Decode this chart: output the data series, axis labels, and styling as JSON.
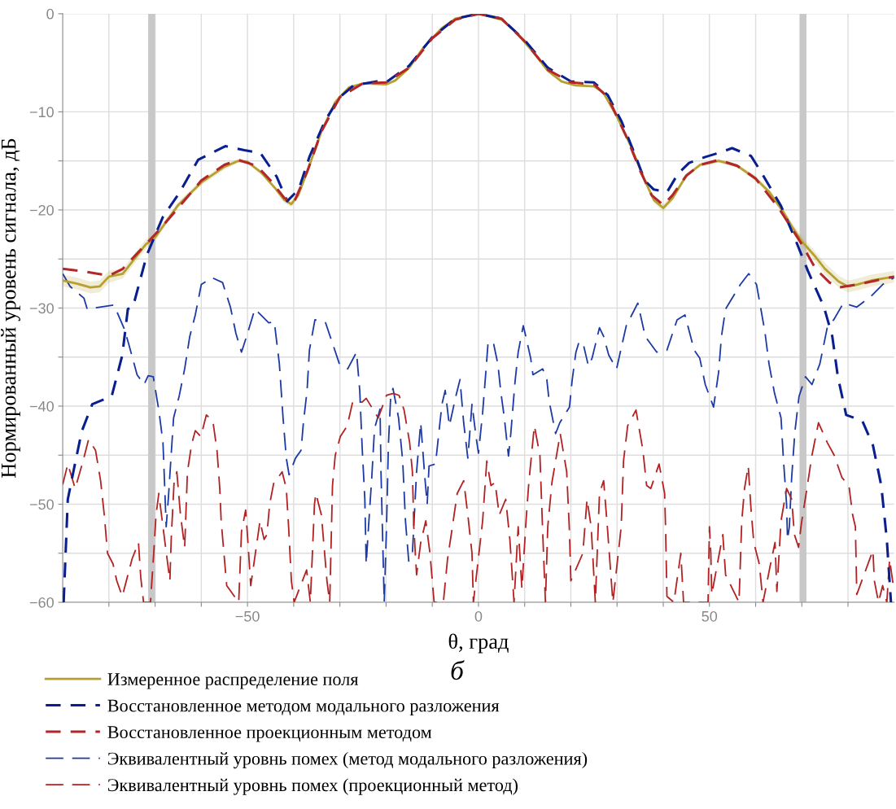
{
  "chart_data": {
    "type": "line",
    "xlabel": "θ, град",
    "ylabel": "Нормированный уровень сигнала, дБ",
    "annotations": [
      "б"
    ],
    "xlim": [
      -90,
      90
    ],
    "ylim": [
      -60,
      0
    ],
    "xticks": [
      {
        "value": -80,
        "label": null
      },
      {
        "value": -70,
        "label": null
      },
      {
        "value": -60,
        "label": null
      },
      -50,
      {
        "value": -40,
        "label": null
      },
      {
        "value": -30,
        "label": null
      },
      {
        "value": -20,
        "label": null
      },
      {
        "value": -10,
        "label": null
      },
      0,
      {
        "value": 10,
        "label": null
      },
      {
        "value": 20,
        "label": null
      },
      {
        "value": 30,
        "label": null
      },
      {
        "value": 40,
        "label": null
      },
      50,
      {
        "value": 60,
        "label": null
      },
      {
        "value": 70,
        "label": null
      },
      {
        "value": 80,
        "label": null
      }
    ],
    "yticks": [
      0,
      -10,
      {
        "value": -15,
        "label": null
      },
      -20,
      {
        "value": -25,
        "label": null
      },
      -30,
      {
        "value": -35,
        "label": null
      },
      -40,
      {
        "value": -45,
        "label": null
      },
      -50,
      {
        "value": -55,
        "label": null
      },
      -60
    ],
    "grid": true,
    "legend": "bottom",
    "bands": [
      {
        "axis": "x",
        "from": -71.5,
        "to": -70,
        "color": "#c8c8c8"
      },
      {
        "axis": "x",
        "from": 69.5,
        "to": 71,
        "color": "#c8c8c8"
      }
    ],
    "series": [
      {
        "name": "Измеренное распределение поля",
        "color": "#b5a030",
        "line_style": "solid",
        "x": [
          -90,
          -87,
          -84,
          -82,
          -80,
          -77,
          -75,
          -72,
          -70,
          -67,
          -65,
          -60,
          -55,
          -52,
          -50,
          -47,
          -44,
          -42,
          -40.5,
          -39,
          -37,
          -34,
          -31,
          -28,
          -25,
          -20,
          -18,
          -15,
          -12,
          -8,
          -5,
          0,
          5,
          8,
          12,
          15,
          18,
          21,
          25,
          27,
          30,
          33,
          36,
          38,
          40,
          42,
          45,
          48,
          52,
          56,
          60,
          63,
          66,
          68,
          70,
          73,
          75,
          78,
          80,
          82,
          85,
          90
        ],
        "values": [
          -27.2,
          -27.5,
          -27.9,
          -27.8,
          -26.8,
          -26.5,
          -25.3,
          -23.5,
          -22.8,
          -20.8,
          -19.5,
          -17.2,
          -15.6,
          -15.0,
          -15.1,
          -16.2,
          -17.8,
          -19.0,
          -19.4,
          -18.5,
          -16,
          -12,
          -9,
          -7.5,
          -7.1,
          -7.2,
          -6.8,
          -5.5,
          -3.5,
          -1.5,
          -0.5,
          0,
          -0.6,
          -1.8,
          -4.0,
          -5.8,
          -6.9,
          -7.3,
          -7.4,
          -8.0,
          -10.5,
          -13.5,
          -17.0,
          -19.0,
          -19.8,
          -18.8,
          -16.5,
          -15.4,
          -15.0,
          -15.5,
          -16.8,
          -18.2,
          -20.2,
          -21.8,
          -23.2,
          -24.8,
          -26.0,
          -27.3,
          -27.8,
          -27.6,
          -27.2,
          -26.8
        ],
        "lower": [
          -27.8,
          -28.1,
          -28.5,
          -28.4,
          -27.4,
          -27.0,
          -25.8,
          -24.0,
          -23.2,
          -21.1,
          -19.8,
          -17.5,
          -15.9,
          -15.2,
          -15.3,
          -16.4,
          -18.0,
          -19.3,
          -19.7,
          -18.7,
          -16.2,
          -12.2,
          -9.2,
          -7.6,
          -7.2,
          -7.3,
          -6.9,
          -5.6,
          -3.6,
          -1.6,
          -0.6,
          -0.1,
          -0.7,
          -1.9,
          -4.1,
          -5.9,
          -7.0,
          -7.4,
          -7.5,
          -8.2,
          -10.7,
          -13.7,
          -17.2,
          -19.3,
          -20.2,
          -19.1,
          -16.7,
          -15.6,
          -15.2,
          -15.7,
          -17.1,
          -18.5,
          -20.5,
          -22.2,
          -23.7,
          -25.3,
          -26.6,
          -27.9,
          -28.4,
          -28.2,
          -27.8,
          -27.4
        ],
        "upper": [
          -26.6,
          -26.9,
          -27.3,
          -27.2,
          -26.2,
          -26.0,
          -24.8,
          -23.0,
          -22.4,
          -20.5,
          -19.2,
          -16.9,
          -15.3,
          -14.8,
          -14.9,
          -16.0,
          -17.6,
          -18.7,
          -19.1,
          -18.3,
          -15.8,
          -11.8,
          -8.8,
          -7.4,
          -7.0,
          -7.1,
          -6.7,
          -5.4,
          -3.4,
          -1.4,
          -0.4,
          0,
          -0.5,
          -1.7,
          -3.9,
          -5.7,
          -6.8,
          -7.2,
          -7.3,
          -7.8,
          -10.3,
          -13.3,
          -16.8,
          -18.7,
          -19.4,
          -18.5,
          -16.3,
          -15.2,
          -14.8,
          -15.3,
          -16.5,
          -17.9,
          -19.9,
          -21.4,
          -22.7,
          -24.3,
          -25.4,
          -26.7,
          -27.2,
          -27.0,
          -26.6,
          -26.2
        ]
      },
      {
        "name": "Восстановленное методом модального разложения",
        "color": "#0a1f8f",
        "line_style": "dashed",
        "x": [
          -89.8,
          -88.9,
          -87.7,
          -85.9,
          -83.6,
          -79.4,
          -77.1,
          -75.9,
          -74.8,
          -71.8,
          -68.3,
          -64.8,
          -60.7,
          -54.8,
          -50.7,
          -47.2,
          -43.7,
          -41.4,
          -38.9,
          -36.6,
          -33.1,
          -30,
          -27,
          -22,
          -20,
          -15,
          -10,
          -5,
          0,
          5,
          10,
          15,
          20,
          25,
          28,
          31,
          34,
          36,
          37.9,
          40.8,
          43.2,
          45.6,
          49.1,
          52.6,
          54.9,
          59,
          61.4,
          65.5,
          68.5,
          71.3,
          74.8,
          76.6,
          77.8,
          79.6,
          83.1,
          85.4,
          87.2,
          88.4,
          89.3
        ],
        "values": [
          -60,
          -49.5,
          -46.7,
          -42.6,
          -39.8,
          -39.0,
          -34.8,
          -30.1,
          -29.9,
          -24.6,
          -20.7,
          -18.3,
          -14.9,
          -13.5,
          -13.9,
          -14.2,
          -16.6,
          -19.1,
          -17.9,
          -14.6,
          -10.8,
          -8.5,
          -7.3,
          -6.9,
          -7.0,
          -5.3,
          -2.4,
          -0.5,
          0,
          -0.5,
          -2.7,
          -5.5,
          -6.9,
          -7.0,
          -8.3,
          -11,
          -14.5,
          -17.0,
          -17.9,
          -18.2,
          -16.3,
          -15.2,
          -14.6,
          -14.1,
          -13.7,
          -14.5,
          -16.3,
          -19.6,
          -22.9,
          -26.2,
          -29.9,
          -32.9,
          -37,
          -40.9,
          -41.5,
          -44,
          -48.1,
          -53.6,
          -60
        ]
      },
      {
        "name": "Восстановленное проекционным методом",
        "color": "#b3262a",
        "line_style": "dashed",
        "x": [
          -90,
          -85,
          -80,
          -77,
          -73,
          -70,
          -65,
          -60,
          -55,
          -52,
          -48,
          -45,
          -42,
          -40,
          -37,
          -34,
          -30,
          -25,
          -20,
          -15,
          -10,
          -5,
          0,
          5,
          10,
          15,
          20,
          25,
          28,
          32,
          35,
          37.5,
          40,
          42,
          45,
          48,
          52,
          56,
          60,
          65,
          70,
          73,
          76,
          78,
          82,
          86,
          90
        ],
        "values": [
          -26,
          -26.3,
          -26.7,
          -26.0,
          -24,
          -22.5,
          -19.8,
          -17,
          -15.4,
          -14.9,
          -15.5,
          -17,
          -18.8,
          -19.3,
          -16,
          -12,
          -8.5,
          -7.1,
          -7.0,
          -5.5,
          -2.5,
          -0.6,
          0,
          -0.5,
          -2.8,
          -5.7,
          -7.0,
          -7.2,
          -8.5,
          -12.5,
          -16,
          -18.5,
          -19.5,
          -18.5,
          -16.5,
          -15.4,
          -14.9,
          -15.5,
          -16.8,
          -19.8,
          -23.5,
          -26,
          -27.4,
          -27.9,
          -27.6,
          -27.2,
          -26.8
        ]
      },
      {
        "name": "Эквивалентный уровнь помех (метод модального разложения)",
        "color": "#1c3aa6",
        "line_style": "dashed",
        "x": [
          -90,
          -88.4,
          -85.4,
          -84.7,
          -78.9,
          -76.6,
          -75.7,
          -73.9,
          -72.4,
          -71.5,
          -70.4,
          -69.2,
          -68.3,
          -68,
          -67.6,
          -67.1,
          -66.5,
          -66,
          -64.8,
          -63.6,
          -62.5,
          -61.3,
          -60,
          -57.7,
          -55.4,
          -53.7,
          -52.5,
          -51.3,
          -50.2,
          -48.4,
          -45.4,
          -44.2,
          -43.1,
          -42.3,
          -41.6,
          -41,
          -39.6,
          -38.4,
          -37.9,
          -37.1,
          -36.6,
          -35.4,
          -33.1,
          -30.1,
          -28.3,
          -26.4,
          -25.7,
          -25.2,
          -24.6,
          -24.3,
          -23.8,
          -23.1,
          -22.5,
          -21.3,
          -21.1,
          -20.4,
          -19.9,
          -19.5,
          -19,
          -18.5,
          -17.3,
          -16.4,
          -15.8,
          -15.1,
          -14.3,
          -13.4,
          -12.5,
          -11.6,
          -11.1,
          -10.7,
          -9.3,
          -7.9,
          -7.2,
          -6.3,
          -4.9,
          -4,
          -3.2,
          -2.3,
          -1.4,
          -0.5,
          0,
          0.9,
          1.6,
          2.1,
          3.3,
          4.2,
          4.8,
          5.6,
          6.5,
          7,
          7.9,
          8.6,
          9.7,
          10.4,
          11.3,
          11.8,
          13.9,
          14.8,
          15.3,
          16.7,
          17.6,
          19.7,
          20.3,
          21.1,
          21.8,
          22.7,
          23.8,
          24.6,
          26.2,
          27.1,
          28.2,
          29.9,
          30.8,
          32,
          34.5,
          36.1,
          38.6,
          40.8,
          43,
          44.7,
          46.7,
          47.9,
          49.1,
          50.9,
          52,
          52.6,
          53.5,
          56.7,
          58.5,
          60.2,
          62,
          62.9,
          64.1,
          65.5,
          66,
          66.7,
          66.9,
          67.3,
          67.8,
          68.5,
          69.4,
          70.8,
          72.2,
          73.9,
          75.5,
          76.9,
          79,
          81.9,
          85,
          87.5,
          90
        ],
        "values": [
          -26.5,
          -27.8,
          -29,
          -30.1,
          -29.7,
          -32.2,
          -33.7,
          -36.8,
          -37.8,
          -36.9,
          -37,
          -40.4,
          -43.7,
          -47.3,
          -52.3,
          -49.2,
          -44.8,
          -41.2,
          -39,
          -36.2,
          -32.9,
          -30.7,
          -27.6,
          -26.9,
          -27.4,
          -29.9,
          -32.6,
          -34.5,
          -32.9,
          -30.1,
          -31.5,
          -31.4,
          -35.7,
          -41.2,
          -45.3,
          -47,
          -45.3,
          -44.5,
          -41.7,
          -38.4,
          -34.3,
          -31.2,
          -31.5,
          -35.7,
          -36.2,
          -34.5,
          -38.4,
          -44,
          -49.5,
          -56.1,
          -52.3,
          -47.3,
          -42.3,
          -40.3,
          -46.7,
          -60,
          -52.3,
          -44,
          -39,
          -38.2,
          -41.2,
          -45.6,
          -51.7,
          -55.8,
          -55,
          -46.7,
          -41.7,
          -47.3,
          -50,
          -46.1,
          -45.9,
          -39.8,
          -38.4,
          -42,
          -39,
          -37.3,
          -41.7,
          -45.3,
          -39.8,
          -43.2,
          -44.8,
          -40.7,
          -36.5,
          -33.4,
          -33.7,
          -35.7,
          -38.4,
          -41.2,
          -45.1,
          -42.8,
          -37.6,
          -34.5,
          -31.8,
          -33.2,
          -35.1,
          -36.8,
          -36.2,
          -37.3,
          -39.5,
          -42.8,
          -41.7,
          -40.1,
          -37.3,
          -34.5,
          -33.4,
          -33.7,
          -35.9,
          -35.1,
          -32,
          -32.9,
          -34.8,
          -36.2,
          -34.3,
          -31.8,
          -29.5,
          -32.9,
          -34.5,
          -34.3,
          -31.2,
          -30.7,
          -34.3,
          -35.1,
          -37.8,
          -40.1,
          -36.5,
          -32.9,
          -30.1,
          -27.6,
          -26.5,
          -27.6,
          -32.4,
          -35.7,
          -38.7,
          -41.2,
          -45.3,
          -50,
          -53.6,
          -52.3,
          -47.3,
          -42.6,
          -39,
          -37,
          -37.8,
          -35.7,
          -32,
          -31.2,
          -29.5,
          -29.9,
          -28.8,
          -27.6,
          -26.9
        ]
      },
      {
        "name": "Эквивалентный уровнь помех (проекционный метод)",
        "color": "#b22222",
        "line_style": "dashed",
        "x": [
          -90,
          -88.9,
          -87.3,
          -85.6,
          -84.4,
          -82.9,
          -81.8,
          -81,
          -80.3,
          -79.1,
          -78.3,
          -77.1,
          -75,
          -73.6,
          -73.1,
          -72.5,
          -71,
          -70.3,
          -69.8,
          -69.2,
          -68.3,
          -67.4,
          -66.8,
          -66.5,
          -65.9,
          -65.3,
          -64.5,
          -63.6,
          -63,
          -62.1,
          -61.3,
          -60.1,
          -58.9,
          -57.5,
          -56.6,
          -56,
          -55.7,
          -55.1,
          -54.5,
          -51.9,
          -51.3,
          -50.4,
          -49.9,
          -49.3,
          -47.8,
          -47.3,
          -46.4,
          -45.8,
          -45.2,
          -44.3,
          -43.4,
          -42.5,
          -41.6,
          -41.1,
          -40.5,
          -39.9,
          -37.2,
          -36.4,
          -35.5,
          -35.2,
          -34,
          -32.8,
          -32.2,
          -31.6,
          -31,
          -29.9,
          -28.4,
          -27.2,
          -25.2,
          -24.3,
          -22.5,
          -21.7,
          -19.9,
          -18.4,
          -17.2,
          -16.1,
          -14.9,
          -14.3,
          -14,
          -13.4,
          -12.5,
          -11.4,
          -10.5,
          -9.6,
          -7.6,
          -6.7,
          -5.8,
          -4.6,
          -3.2,
          -2.3,
          -1.4,
          -1.1,
          0.9,
          1.8,
          2.7,
          3.6,
          4.5,
          5.9,
          6.8,
          7.7,
          8.6,
          9.4,
          10.3,
          10.9,
          12.1,
          13.3,
          13.9,
          14.5,
          15,
          15.9,
          17.7,
          19.1,
          19.7,
          20,
          22.6,
          23.5,
          24.4,
          25.3,
          26.2,
          27.1,
          27.9,
          29.1,
          30.9,
          31.4,
          32.3,
          34.1,
          35.6,
          36.4,
          37.3,
          39.1,
          40.3,
          40.5,
          40.8,
          42.3,
          43.8,
          44.4,
          49.7,
          50,
          50.3,
          50.5,
          52.9,
          53.5,
          56.4,
          57,
          57.6,
          58.4,
          59,
          59.6,
          60.8,
          61.6,
          63.1,
          64.2,
          64.6,
          65.5,
          66.7,
          67.8,
          68.4,
          69.3,
          69.9,
          71.1,
          72.2,
          73.6,
          75.5,
          77,
          78.7,
          80.2,
          81,
          81.6,
          81.9,
          85.4,
          85.7,
          86.6,
          87.5,
          88.4,
          89,
          89.8
        ],
        "values": [
          -48,
          -45.9,
          -48.4,
          -45.6,
          -43.4,
          -44.5,
          -47.6,
          -51.1,
          -55,
          -56.1,
          -57.8,
          -59.4,
          -55.6,
          -53.9,
          -57.5,
          -60,
          -60,
          -55,
          -51.1,
          -48.9,
          -52.3,
          -55.6,
          -57.8,
          -53.4,
          -47.8,
          -46.7,
          -51.1,
          -54.4,
          -46.7,
          -43.9,
          -42.5,
          -43.1,
          -40.9,
          -41.5,
          -44.5,
          -48.4,
          -51.7,
          -55,
          -58.3,
          -60,
          -52.8,
          -50.6,
          -53.9,
          -58.3,
          -53.4,
          -51.7,
          -53.6,
          -53.1,
          -50,
          -47.8,
          -47.3,
          -46.7,
          -48.4,
          -52.3,
          -57.8,
          -60,
          -56.7,
          -60,
          -50,
          -48.9,
          -51.1,
          -57.8,
          -60,
          -48.1,
          -45,
          -43.1,
          -42,
          -39.5,
          -39.6,
          -39.2,
          -40.6,
          -41.2,
          -38.9,
          -38.7,
          -38.9,
          -40.4,
          -43.7,
          -46.7,
          -52.3,
          -57.2,
          -53.9,
          -51.7,
          -55,
          -60,
          -60,
          -55.6,
          -52.8,
          -48.9,
          -47.6,
          -51.1,
          -55,
          -60,
          -51.7,
          -45.6,
          -48.1,
          -47.8,
          -51.1,
          -49.5,
          -53.6,
          -60,
          -52.3,
          -58.6,
          -51.7,
          -47.8,
          -42,
          -45,
          -52.8,
          -60,
          -52.3,
          -47.8,
          -42.8,
          -46.7,
          -52.8,
          -57.8,
          -55,
          -49.5,
          -52.3,
          -60,
          -48.9,
          -47.6,
          -52.3,
          -60,
          -52.3,
          -45.6,
          -42,
          -40.4,
          -44.5,
          -48.1,
          -48.4,
          -45.9,
          -48.9,
          -52.3,
          -59.4,
          -60,
          -55,
          -60,
          -60,
          -52.3,
          -55,
          -59.2,
          -53.1,
          -57.2,
          -60,
          -51.7,
          -48.4,
          -46.1,
          -50.5,
          -53.9,
          -56.1,
          -60,
          -56.4,
          -53.9,
          -58.9,
          -51.7,
          -48.4,
          -49.5,
          -53.1,
          -54.4,
          -52,
          -48.4,
          -45,
          -41.7,
          -43.7,
          -45,
          -47.3,
          -48.1,
          -51.1,
          -52.3,
          -59.2,
          -54.7,
          -57.8,
          -60,
          -58.3,
          -60,
          -55.6,
          -58.3
        ]
      }
    ]
  }
}
